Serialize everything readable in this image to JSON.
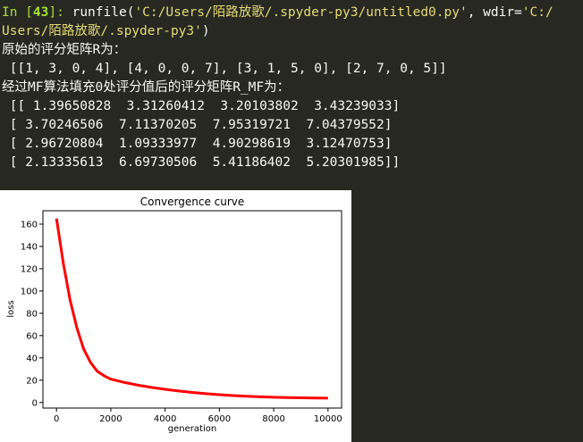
{
  "console": {
    "prompt_prefix": "In [",
    "prompt_number": "43",
    "prompt_suffix": "]:",
    "command_fn": " runfile(",
    "command_arg1": "'C:/Users/陌路放歌/.spyder-py3/untitled0.py'",
    "command_mid": ", wdir=",
    "command_arg2_part1": "'C:/",
    "command_arg2_part2": "Users/陌路放歌/.spyder-py3'",
    "command_close": ")",
    "output_lines": [
      "原始的评分矩阵R为：",
      " [[1, 3, 0, 4], [4, 0, 0, 7], [3, 1, 5, 0], [2, 7, 0, 5]]",
      "经过MF算法填充0处评分值后的评分矩阵R_MF为：",
      " [[ 1.39650828  3.31260412  3.20103802  3.43239033]",
      " [ 3.70246506  7.11370205  7.95319721  7.04379552]",
      " [ 2.96720804  1.09333977  4.90298619  3.12470753]",
      " [ 2.13335613  6.69730506  5.41186402  5.20301985]]"
    ]
  },
  "chart_data": {
    "type": "line",
    "title": "Convergence curve",
    "xlabel": "generation",
    "ylabel": "loss",
    "xlim": [
      -500,
      10500
    ],
    "ylim": [
      -5,
      172
    ],
    "xticks": [
      0,
      2000,
      4000,
      6000,
      8000,
      10000
    ],
    "yticks": [
      0,
      20,
      40,
      60,
      80,
      100,
      120,
      140,
      160
    ],
    "grid": false,
    "series": [
      {
        "color": "#ff0000",
        "x": [
          0,
          250,
          500,
          750,
          1000,
          1250,
          1500,
          1750,
          2000,
          2500,
          3000,
          3500,
          4000,
          4500,
          5000,
          5500,
          6000,
          6500,
          7000,
          7500,
          8000,
          8500,
          9000,
          9500,
          10000
        ],
        "y": [
          165,
          125,
          92,
          67,
          48,
          36,
          28,
          24,
          21,
          18,
          15.5,
          13.5,
          11.8,
          10.3,
          9.0,
          7.9,
          7.0,
          6.2,
          5.6,
          5.1,
          4.7,
          4.4,
          4.2,
          4.0,
          3.9
        ]
      }
    ]
  }
}
